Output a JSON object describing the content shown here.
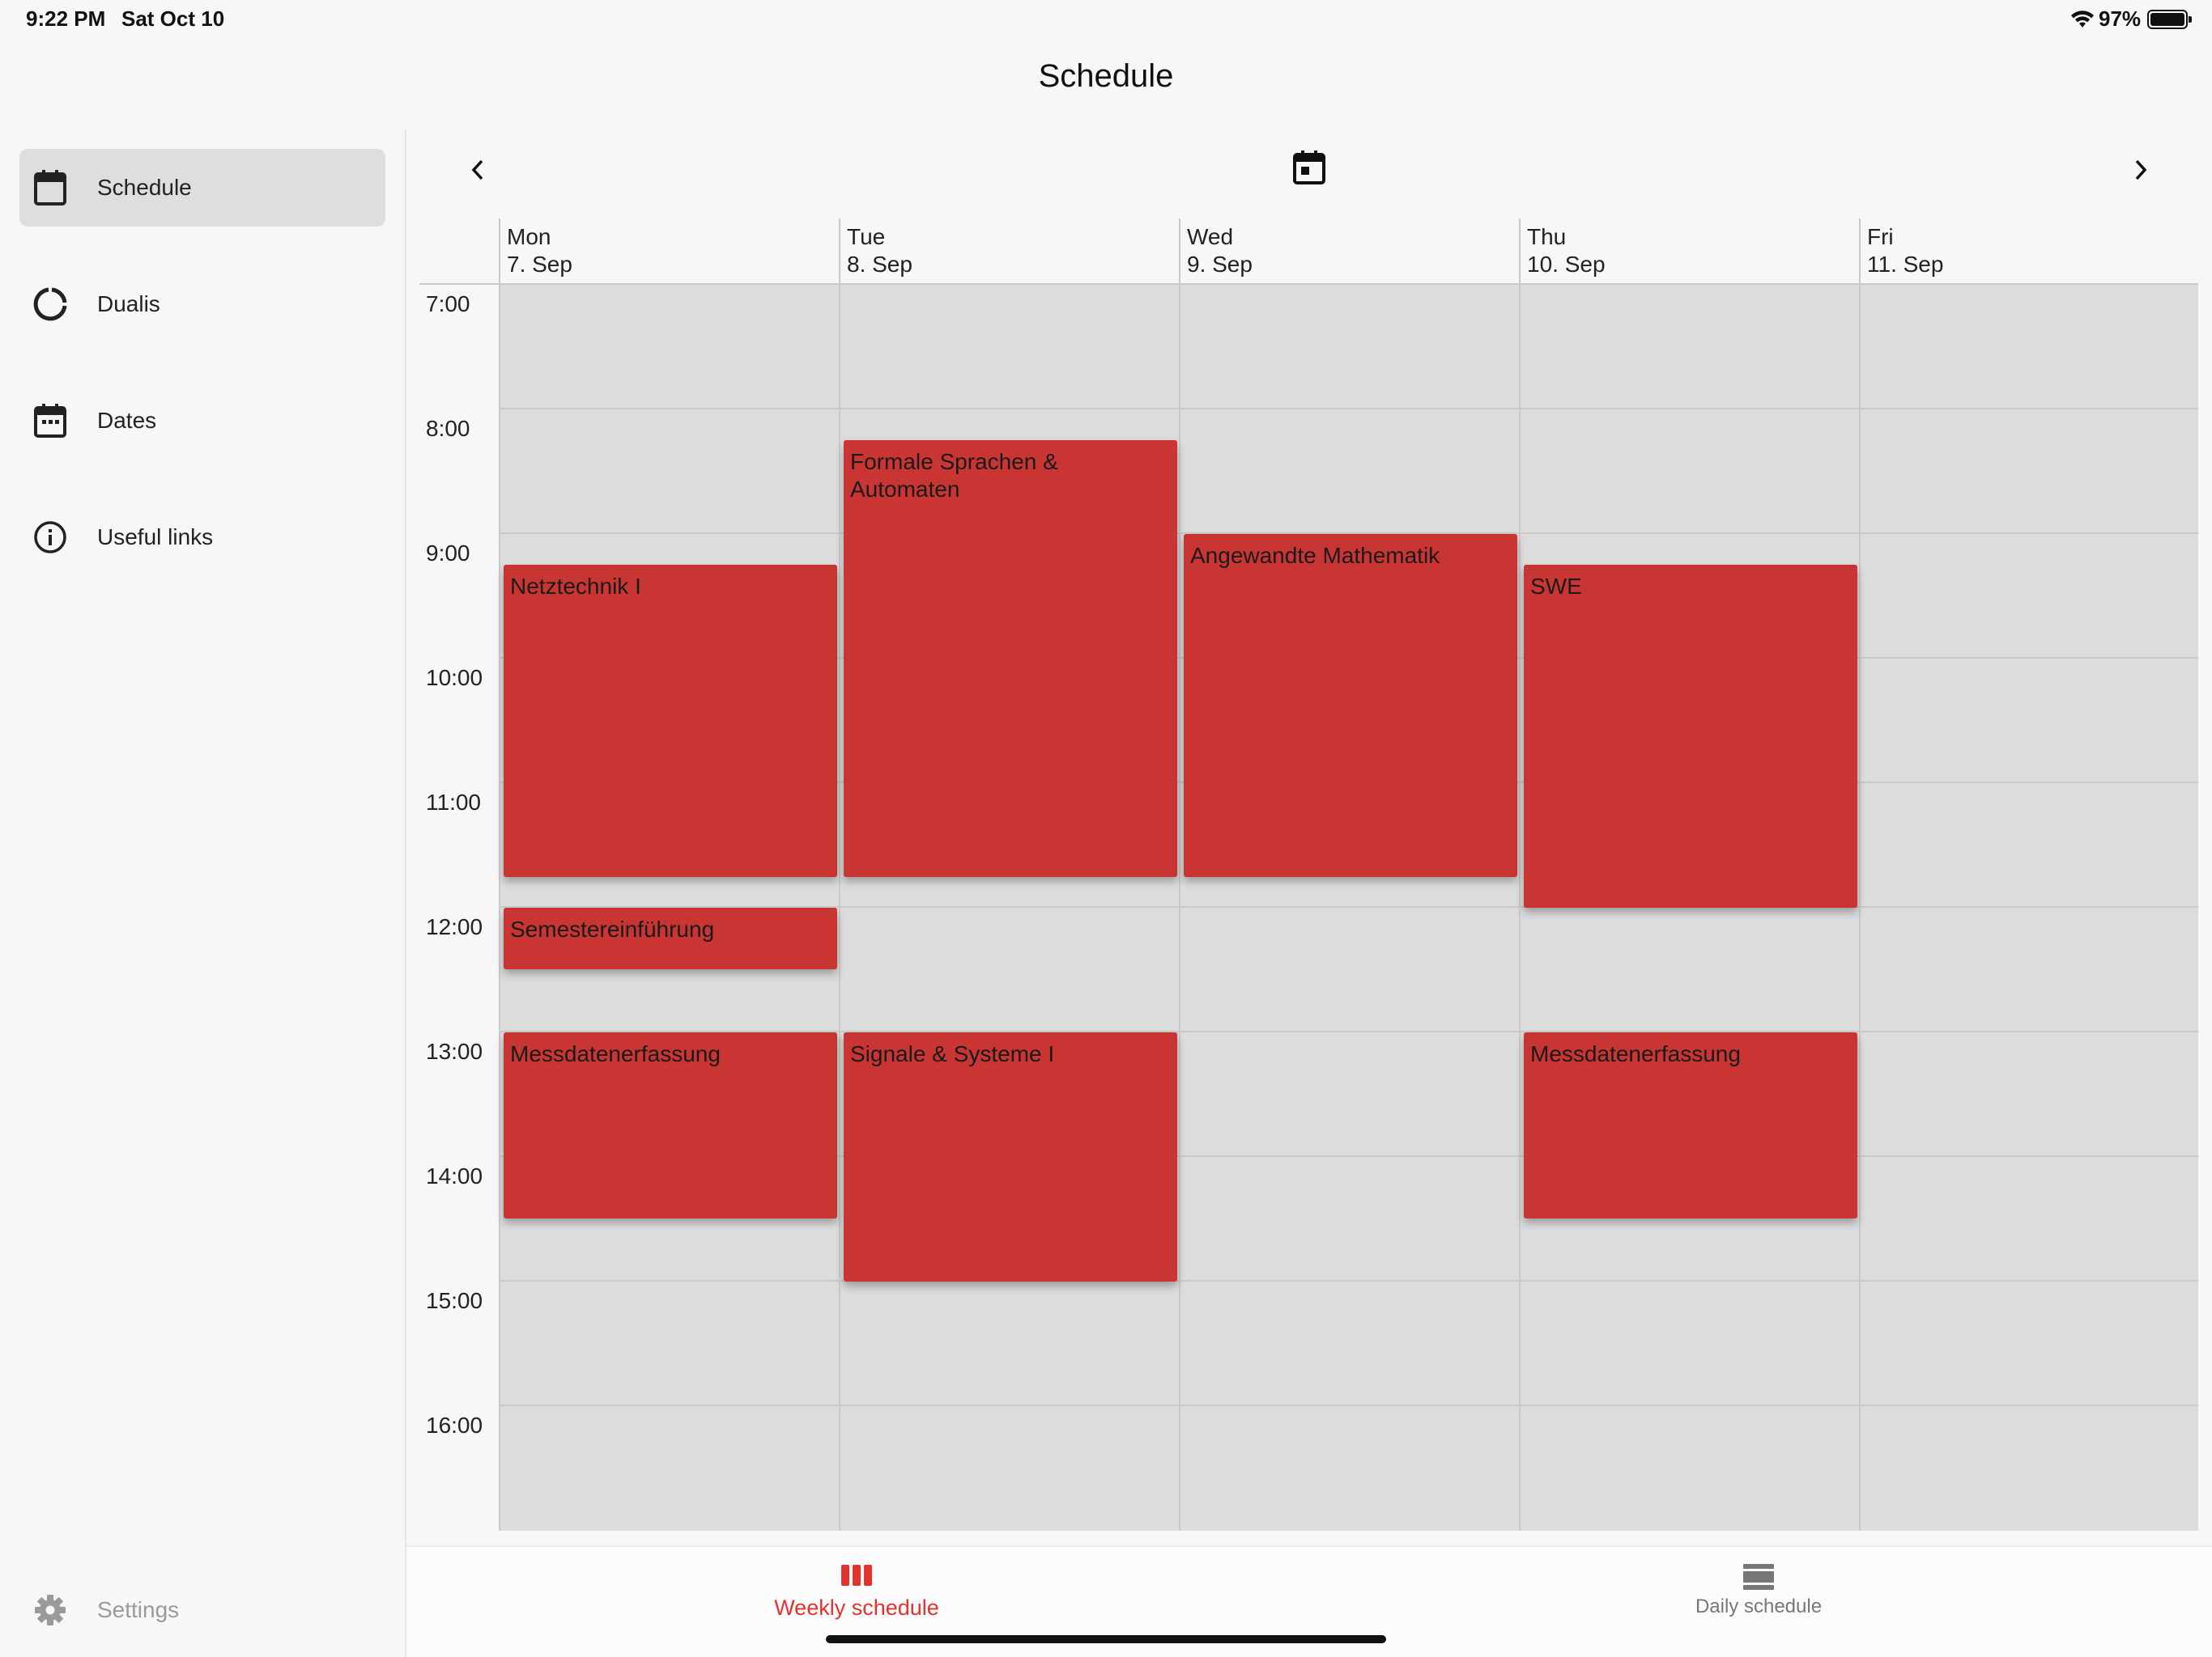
{
  "status_bar": {
    "time": "9:22 PM",
    "date": "Sat Oct 10",
    "battery": "97%"
  },
  "app": {
    "title": "Schedule"
  },
  "sidebar": {
    "items": [
      {
        "label": "Schedule",
        "icon": "calendar-icon",
        "active": true
      },
      {
        "label": "Dualis",
        "icon": "progress-ring-icon",
        "active": false
      },
      {
        "label": "Dates",
        "icon": "calendar-dots-icon",
        "active": false
      },
      {
        "label": "Useful links",
        "icon": "info-icon",
        "active": false
      }
    ],
    "settings_label": "Settings"
  },
  "calendar": {
    "days": [
      {
        "weekday": "Mon",
        "date": "7. Sep"
      },
      {
        "weekday": "Tue",
        "date": "8. Sep"
      },
      {
        "weekday": "Wed",
        "date": "9. Sep"
      },
      {
        "weekday": "Thu",
        "date": "10. Sep"
      },
      {
        "weekday": "Fri",
        "date": "11. Sep"
      }
    ],
    "hours": [
      "7:00",
      "8:00",
      "9:00",
      "10:00",
      "11:00",
      "12:00",
      "13:00",
      "14:00",
      "15:00",
      "16:00"
    ],
    "events": [
      {
        "title": "Netztechnik I",
        "day": 0,
        "start": "9:15",
        "end": "11:45"
      },
      {
        "title": "Semestereinführung",
        "day": 0,
        "start": "12:00",
        "end": "12:30"
      },
      {
        "title": "Messdatenerfassung",
        "day": 0,
        "start": "13:00",
        "end": "14:30"
      },
      {
        "title": "Formale Sprachen & Automaten",
        "day": 1,
        "start": "8:15",
        "end": "11:45"
      },
      {
        "title": "Signale & Systeme I",
        "day": 1,
        "start": "13:00",
        "end": "15:00"
      },
      {
        "title": "Angewandte Mathematik",
        "day": 2,
        "start": "9:00",
        "end": "11:45"
      },
      {
        "title": "SWE",
        "day": 3,
        "start": "9:15",
        "end": "12:00"
      },
      {
        "title": "Messdatenerfassung",
        "day": 3,
        "start": "13:00",
        "end": "14:30"
      }
    ]
  },
  "tabbar": {
    "tabs": [
      {
        "label": "Weekly schedule",
        "active": true
      },
      {
        "label": "Daily schedule",
        "active": false
      }
    ],
    "accent_color": "#e3312e"
  }
}
